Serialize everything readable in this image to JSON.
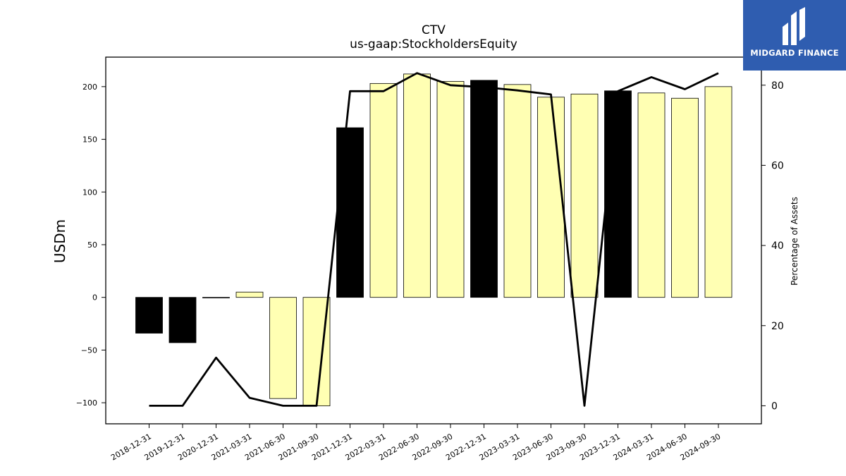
{
  "chart_data": {
    "type": "bar",
    "title": "CTV",
    "subtitle": "us-gaap:StockholdersEquity",
    "ylabel": "USDm",
    "y2label": "Percentage of Assets",
    "ylim": [
      -120,
      228
    ],
    "y2lim": [
      -4.5,
      87
    ],
    "yticks": [
      -100,
      -50,
      0,
      50,
      100,
      150,
      200
    ],
    "ytick_labels": [
      "−100",
      "−50",
      "0",
      "50",
      "100",
      "150",
      "200"
    ],
    "y2ticks": [
      0,
      20,
      40,
      60,
      80
    ],
    "y2tick_labels": [
      "0",
      "20",
      "40",
      "60",
      "80"
    ],
    "categories": [
      "2018-12-31",
      "2019-12-31",
      "2020-12-31",
      "2021-03-31",
      "2021-06-30",
      "2021-09-30",
      "2021-12-31",
      "2022-03-31",
      "2022-06-30",
      "2022-09-30",
      "2022-12-31",
      "2023-03-31",
      "2023-06-30",
      "2023-09-30",
      "2023-12-31",
      "2024-03-31",
      "2024-06-30",
      "2024-09-30"
    ],
    "series": [
      {
        "type": "bar",
        "values": [
          -34,
          -43,
          -0.5,
          5,
          -96,
          -103,
          161,
          203,
          212,
          205,
          206,
          202,
          190,
          193,
          196,
          194,
          189,
          200
        ],
        "colors": [
          "#000000",
          "#000000",
          "#ffffb3",
          "#ffffb3",
          "#ffffb3",
          "#ffffb3",
          "#000000",
          "#ffffb3",
          "#ffffb3",
          "#ffffb3",
          "#000000",
          "#ffffb3",
          "#ffffb3",
          "#ffffb3",
          "#000000",
          "#ffffb3",
          "#ffffb3",
          "#ffffb3"
        ]
      },
      {
        "type": "line",
        "axis": "right",
        "values": [
          0,
          0,
          12,
          2,
          0,
          0,
          78.5,
          78.5,
          83,
          80,
          79.5,
          78.7,
          77.7,
          0,
          78.5,
          82,
          79,
          83
        ],
        "color": "#000000"
      }
    ],
    "grid": false
  },
  "logo": {
    "text": "MIDGARD FINANCE"
  }
}
